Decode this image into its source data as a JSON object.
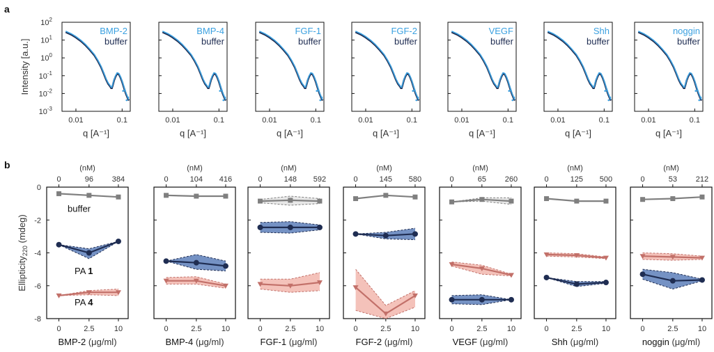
{
  "panel_labels": {
    "a": "a",
    "b": "b"
  },
  "colors": {
    "protein": "#3aa0e0",
    "buffer_saxs": "#1f2d52",
    "buffer": "#7f7f7f",
    "pa1_line": "#1f2d52",
    "pa1_fill": "#5d7fba",
    "pa4_line": "#c27069",
    "pa4_fill": "#f2b7ae",
    "frame": "#111111"
  },
  "chart_data": [
    {
      "type": "line",
      "panel": "a",
      "ylabel": "Intensity [a.u.]",
      "xlabel": "q [A⁻¹]",
      "x_scale": "log",
      "y_scale": "log",
      "xlim": [
        0.005,
        0.15
      ],
      "ylim": [
        0.001,
        100
      ],
      "x_ticks": [
        "0.01",
        "0.1"
      ],
      "y_ticks": [
        {
          "value": 100,
          "label": "10",
          "exp": "2"
        },
        {
          "value": 10,
          "label": "10",
          "exp": "1"
        },
        {
          "value": 1,
          "label": "10",
          "exp": "0"
        },
        {
          "value": 0.1,
          "label": "10",
          "exp": "-1"
        },
        {
          "value": 0.01,
          "label": "10",
          "exp": "-2"
        },
        {
          "value": 0.001,
          "label": "10",
          "exp": "-3"
        }
      ],
      "curve": {
        "q": [
          0.006,
          0.008,
          0.01,
          0.013,
          0.016,
          0.02,
          0.025,
          0.03,
          0.035,
          0.04,
          0.045,
          0.05,
          0.055,
          0.058,
          0.06,
          0.063,
          0.067,
          0.072,
          0.078,
          0.085,
          0.092,
          0.1,
          0.11,
          0.12,
          0.13,
          0.14
        ],
        "intensity": [
          28,
          20,
          14,
          8.5,
          5.2,
          2.8,
          1.4,
          0.65,
          0.3,
          0.13,
          0.06,
          0.035,
          0.025,
          0.02,
          0.02,
          0.03,
          0.055,
          0.09,
          0.13,
          0.12,
          0.08,
          0.045,
          0.02,
          0.01,
          0.006,
          0.004
        ]
      },
      "protein_names": [
        "BMP-2",
        "BMP-4",
        "FGF-1",
        "FGF-2",
        "VEGF",
        "Shh",
        "noggin"
      ],
      "buffer_label": "buffer"
    },
    {
      "type": "line",
      "panel": "b",
      "ylabel": "Ellipticity",
      "ylabel_sub": "220",
      "ylabel_unit": " (mdeg)",
      "ylim": [
        -8,
        0
      ],
      "y_ticks": [
        "0",
        "-2",
        "-4",
        "-6",
        "-8"
      ],
      "x_ticks": [
        "0",
        "2.5",
        "10"
      ],
      "top_unit": "(nM)",
      "annotations": {
        "buffer": "buffer",
        "pa1": "PA ",
        "pa1_num": "1",
        "pa4": "PA ",
        "pa4_num": "4"
      },
      "panels": [
        {
          "name": "BMP-2",
          "unit": " (μg/ml)",
          "top_ticks": [
            "0",
            "96",
            "384"
          ],
          "series": [
            {
              "name": "buffer",
              "marker": "square",
              "values": [
                -0.4,
                -0.5,
                -0.6
              ],
              "band": null
            },
            {
              "name": "PA 1",
              "marker": "circle",
              "values": [
                -3.5,
                -4.0,
                -3.3
              ],
              "band": [
                [
                  -3.5,
                  -3.5
                ],
                [
                  -4.35,
                  -3.75
                ],
                [
                  -3.3,
                  -3.3
                ]
              ]
            },
            {
              "name": "PA 4",
              "marker": "triangle",
              "values": [
                -6.6,
                -6.4,
                -6.4
              ],
              "band": [
                [
                  -6.6,
                  -6.6
                ],
                [
                  -6.55,
                  -6.3
                ],
                [
                  -6.6,
                  -6.2
                ]
              ]
            }
          ]
        },
        {
          "name": "BMP-4",
          "unit": " (μg/ml)",
          "top_ticks": [
            "0",
            "104",
            "416"
          ],
          "series": [
            {
              "name": "buffer",
              "marker": "square",
              "values": [
                -0.5,
                -0.55,
                -0.55
              ],
              "band": null
            },
            {
              "name": "PA 1",
              "marker": "circle",
              "values": [
                -4.5,
                -4.6,
                -4.8
              ],
              "band": [
                [
                  -4.5,
                  -4.5
                ],
                [
                  -5.0,
                  -4.1
                ],
                [
                  -5.1,
                  -4.5
                ]
              ]
            },
            {
              "name": "PA 4",
              "marker": "triangle",
              "values": [
                -5.7,
                -5.7,
                -6.0
              ],
              "band": [
                [
                  -5.9,
                  -5.5
                ],
                [
                  -5.9,
                  -5.45
                ],
                [
                  -6.15,
                  -5.9
                ]
              ]
            }
          ]
        },
        {
          "name": "FGF-1",
          "unit": " (μg/ml)",
          "top_ticks": [
            "0",
            "148",
            "592"
          ],
          "series": [
            {
              "name": "buffer",
              "marker": "square",
              "values": [
                -0.85,
                -0.8,
                -0.85
              ],
              "band": [
                [
                  -0.95,
                  -0.75
                ],
                [
                  -1.1,
                  -0.55
                ],
                [
                  -1.0,
                  -0.7
                ]
              ]
            },
            {
              "name": "PA 1",
              "marker": "circle",
              "values": [
                -2.45,
                -2.45,
                -2.45
              ],
              "band": [
                [
                  -2.75,
                  -2.15
                ],
                [
                  -2.8,
                  -2.1
                ],
                [
                  -2.6,
                  -2.3
                ]
              ]
            },
            {
              "name": "PA 4",
              "marker": "triangle",
              "values": [
                -5.9,
                -6.0,
                -5.8
              ],
              "band": [
                [
                  -6.2,
                  -5.6
                ],
                [
                  -6.4,
                  -5.6
                ],
                [
                  -6.3,
                  -5.2
                ]
              ]
            }
          ]
        },
        {
          "name": "FGF-2",
          "unit": " (μg/ml)",
          "top_ticks": [
            "0",
            "145",
            "580"
          ],
          "series": [
            {
              "name": "buffer",
              "marker": "square",
              "values": [
                -0.7,
                -0.5,
                -0.6
              ],
              "band": null
            },
            {
              "name": "PA 1",
              "marker": "circle",
              "values": [
                -2.85,
                -2.95,
                -2.85
              ],
              "band": [
                [
                  -2.85,
                  -2.85
                ],
                [
                  -3.15,
                  -2.75
                ],
                [
                  -3.2,
                  -2.5
                ]
              ]
            },
            {
              "name": "PA 4",
              "marker": "triangle",
              "values": [
                -6.1,
                -7.7,
                -6.6
              ],
              "band": [
                [
                  -7.5,
                  -5.0
                ],
                [
                  -8.0,
                  -7.2
                ],
                [
                  -7.3,
                  -6.3
                ]
              ]
            }
          ]
        },
        {
          "name": "VEGF",
          "unit": " (μg/ml)",
          "top_ticks": [
            "0",
            "65",
            "260"
          ],
          "series": [
            {
              "name": "buffer",
              "marker": "square",
              "values": [
                -0.9,
                -0.75,
                -0.85
              ],
              "band": [
                [
                  -0.9,
                  -0.9
                ],
                [
                  -0.85,
                  -0.65
                ],
                [
                  -1.05,
                  -0.65
                ]
              ]
            },
            {
              "name": "PA 1",
              "marker": "circle",
              "values": [
                -6.85,
                -6.85,
                -6.85
              ],
              "band": [
                [
                  -7.1,
                  -6.6
                ],
                [
                  -7.15,
                  -6.55
                ],
                [
                  -6.85,
                  -6.85
                ]
              ]
            },
            {
              "name": "PA 4",
              "marker": "triangle",
              "values": [
                -4.7,
                -4.95,
                -5.35
              ],
              "band": [
                [
                  -4.8,
                  -4.55
                ],
                [
                  -5.3,
                  -4.75
                ],
                [
                  -5.4,
                  -5.3
                ]
              ]
            }
          ]
        },
        {
          "name": "Shh",
          "unit": " (μg/ml)",
          "top_ticks": [
            "0",
            "125",
            "500"
          ],
          "series": [
            {
              "name": "buffer",
              "marker": "square",
              "values": [
                -0.7,
                -0.85,
                -0.85
              ],
              "band": null
            },
            {
              "name": "PA 1",
              "marker": "circle",
              "values": [
                -5.5,
                -5.9,
                -5.8
              ],
              "band": [
                [
                  -5.5,
                  -5.5
                ],
                [
                  -6.05,
                  -5.75
                ],
                [
                  -5.85,
                  -5.75
                ]
              ]
            },
            {
              "name": "PA 4",
              "marker": "triangle",
              "values": [
                -4.1,
                -4.15,
                -4.3
              ],
              "band": [
                [
                  -4.2,
                  -4.0
                ],
                [
                  -4.25,
                  -4.05
                ],
                [
                  -4.35,
                  -4.25
                ]
              ]
            }
          ]
        },
        {
          "name": "noggin",
          "unit": " (μg/ml)",
          "top_ticks": [
            "0",
            "53",
            "212"
          ],
          "series": [
            {
              "name": "buffer",
              "marker": "square",
              "values": [
                -0.75,
                -0.7,
                -0.6
              ],
              "band": null
            },
            {
              "name": "PA 1",
              "marker": "circle",
              "values": [
                -5.3,
                -5.7,
                -5.65
              ],
              "band": [
                [
                  -5.6,
                  -5.0
                ],
                [
                  -6.2,
                  -5.2
                ],
                [
                  -5.7,
                  -5.6
                ]
              ]
            },
            {
              "name": "PA 4",
              "marker": "triangle",
              "values": [
                -4.2,
                -4.25,
                -4.3
              ],
              "band": [
                [
                  -4.4,
                  -4.0
                ],
                [
                  -4.45,
                  -4.05
                ],
                [
                  -4.4,
                  -4.2
                ]
              ]
            }
          ]
        }
      ]
    }
  ]
}
